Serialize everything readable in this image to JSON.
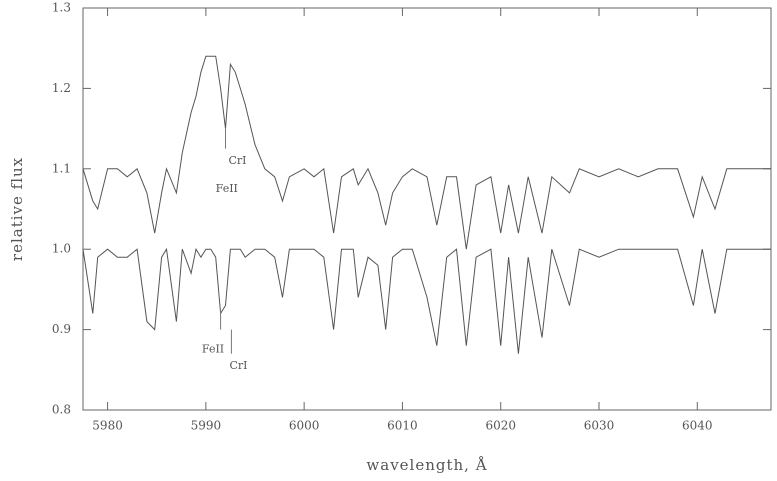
{
  "chart_data": {
    "type": "line",
    "xlabel": "wavelength, Å",
    "ylabel": "relative flux",
    "xlim": [
      5977.5,
      6047.5
    ],
    "xticks": [
      5980,
      5990,
      6000,
      6010,
      6020,
      6030,
      6040
    ],
    "ylim": [
      0.8,
      1.3
    ],
    "yticks": [
      0.8,
      0.9,
      {
        "value": 1,
        "label": "1.0"
      },
      1.1,
      1.2,
      1.3
    ],
    "grid": false,
    "x": [
      5977.5,
      5978.5,
      5979,
      5980,
      5981,
      5982,
      5983,
      5984,
      5984.8,
      5985.5,
      5986,
      5987,
      5987.6,
      5988.5,
      5989,
      5989.5,
      5990,
      5990.5,
      5991,
      5991.5,
      5992,
      5992.5,
      5993,
      5993.5,
      5994,
      5995,
      5996,
      5997,
      5997.8,
      5998.5,
      6000,
      6001,
      6002,
      6003,
      6003.8,
      6005,
      6005.5,
      6006.5,
      6007.5,
      6008.3,
      6009,
      6010,
      6011,
      6012.5,
      6013.5,
      6014.5,
      6015.5,
      6016.5,
      6017.5,
      6019,
      6020,
      6020.8,
      6021.8,
      6022.8,
      6024.2,
      6025.2,
      6027,
      6028,
      6030,
      6032,
      6034,
      6036,
      6038,
      6039.6,
      6040.5,
      6041.8,
      6043,
      6045,
      6047.5
    ],
    "series": [
      {
        "color": "#555555",
        "values": [
          1.1,
          1.06,
          1.05,
          1.1,
          1.1,
          1.09,
          1.1,
          1.07,
          1.02,
          1.07,
          1.1,
          1.07,
          1.12,
          1.17,
          1.19,
          1.22,
          1.24,
          1.24,
          1.24,
          1.2,
          1.15,
          1.23,
          1.22,
          1.2,
          1.18,
          1.13,
          1.1,
          1.09,
          1.06,
          1.09,
          1.1,
          1.09,
          1.1,
          1.02,
          1.09,
          1.1,
          1.08,
          1.1,
          1.07,
          1.03,
          1.07,
          1.09,
          1.1,
          1.09,
          1.03,
          1.09,
          1.09,
          1.0,
          1.08,
          1.09,
          1.02,
          1.08,
          1.02,
          1.09,
          1.02,
          1.09,
          1.07,
          1.1,
          1.09,
          1.1,
          1.09,
          1.1,
          1.1,
          1.04,
          1.09,
          1.05,
          1.1,
          1.1,
          1.1
        ]
      },
      {
        "color": "#555555",
        "values": [
          1.0,
          0.92,
          0.99,
          1.0,
          0.99,
          0.99,
          1.0,
          0.91,
          0.9,
          0.99,
          1.0,
          0.91,
          1.0,
          0.97,
          1.0,
          0.99,
          1.0,
          1.0,
          0.99,
          0.92,
          0.93,
          1.0,
          1.0,
          1.0,
          0.99,
          1.0,
          1.0,
          0.99,
          0.94,
          1.0,
          1.0,
          1.0,
          0.99,
          0.9,
          1.0,
          1.0,
          0.94,
          0.99,
          0.98,
          0.9,
          0.99,
          1.0,
          1.0,
          0.94,
          0.88,
          0.99,
          1.0,
          0.88,
          0.99,
          1.0,
          0.88,
          0.99,
          0.87,
          0.99,
          0.89,
          1.0,
          0.93,
          1.0,
          0.99,
          1.0,
          1.0,
          1.0,
          1.0,
          0.93,
          1.0,
          0.92,
          1.0,
          1.0,
          1.0
        ]
      }
    ],
    "annotations": [
      "CrI",
      "FeII",
      "FeII",
      "CrI"
    ]
  }
}
